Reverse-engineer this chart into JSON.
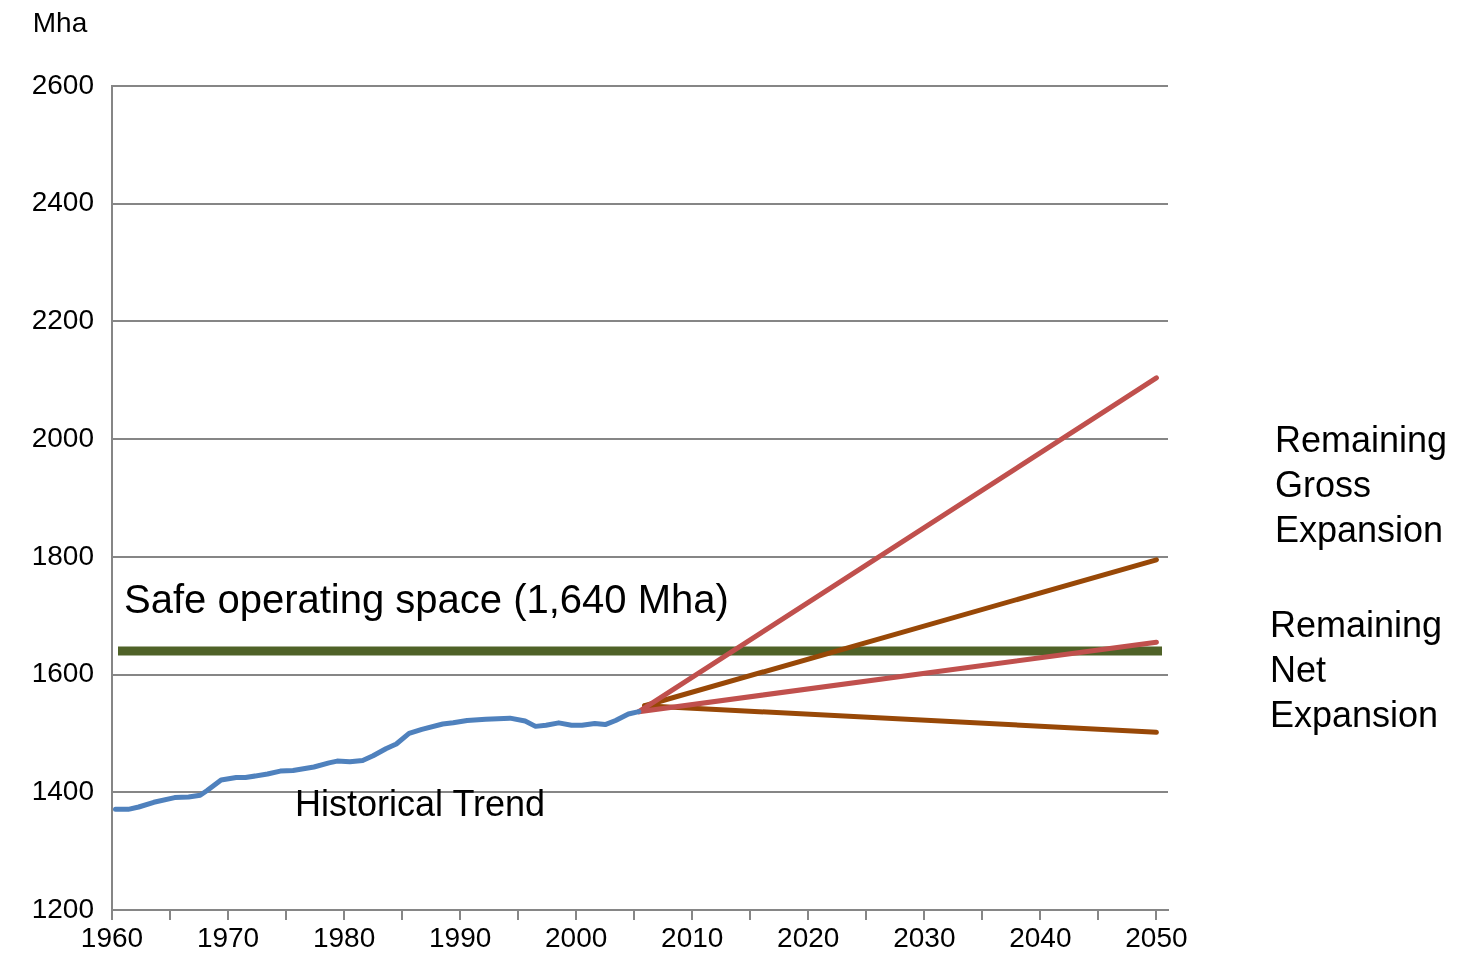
{
  "chart_data": {
    "type": "line",
    "ylabel": "Mha",
    "xlim": [
      1960,
      2051
    ],
    "ylim": [
      1200,
      2600
    ],
    "xticks": [
      1960,
      {
        "value": 1965,
        "label": null
      },
      1970,
      {
        "value": 1975,
        "label": null
      },
      1980,
      {
        "value": 1985,
        "label": null
      },
      1990,
      {
        "value": 1995,
        "label": null
      },
      2000,
      {
        "value": 2005,
        "label": null
      },
      2010,
      {
        "value": 2015,
        "label": null
      },
      2020,
      {
        "value": 2025,
        "label": null
      },
      2030,
      {
        "value": 2035,
        "label": null
      },
      2040,
      {
        "value": 2045,
        "label": null
      },
      2050
    ],
    "yticks": [
      1200,
      1400,
      1600,
      1800,
      2000,
      2200,
      2400,
      2600
    ],
    "grid": "y",
    "legend": false,
    "marker": "none",
    "line_style": "solid",
    "series": [
      {
        "color": "#4f81bd",
        "x": [
          1960.3,
          1961.4,
          1962.3,
          1963.6,
          1965.4,
          1966.6,
          1967.6,
          1968.2,
          1969.4,
          1970.7,
          1971.5,
          1973.4,
          1974.5,
          1975.6,
          1977.4,
          1978.7,
          1979.4,
          1980.5,
          1981.6,
          1982.5,
          1983.6,
          1984.5,
          1985.6,
          1986.7,
          1988.5,
          1989.4,
          1990.6,
          1992.2,
          1994.3,
          1995.6,
          1996.5,
          1997.4,
          1998.5,
          1999.6,
          2000.5,
          2001.6,
          2002.5,
          2003.4,
          2004.5,
          2005.4
        ],
        "values": [
          1371,
          1371,
          1375,
          1383,
          1391,
          1392,
          1395,
          1403,
          1421,
          1425,
          1425,
          1431,
          1436,
          1437,
          1443,
          1450,
          1453,
          1452,
          1454,
          1462,
          1474,
          1482,
          1500,
          1507,
          1516,
          1518,
          1522,
          1524,
          1526,
          1521,
          1512,
          1514,
          1518,
          1514,
          1514,
          1517,
          1515,
          1522,
          1533,
          1537
        ]
      },
      {
        "color": "#c0504d",
        "x": [
          2005.4,
          2050
        ],
        "values": [
          1537,
          2104
        ]
      },
      {
        "color": "#984807",
        "x": [
          2005.9,
          2050
        ],
        "values": [
          1547,
          1795
        ]
      },
      {
        "color": "#c0504d",
        "x": [
          2005.4,
          2050
        ],
        "values": [
          1537,
          1655
        ]
      },
      {
        "color": "#984807",
        "x": [
          2005.9,
          2050
        ],
        "values": [
          1547,
          1502
        ]
      }
    ],
    "ref_lines": [
      {
        "axis": "y",
        "value": 1640,
        "label": "Safe operating space (1,640 Mha)",
        "color": "#4f6228"
      }
    ],
    "annotations": [
      "Historical Trend",
      "Remaining Gross Expansion",
      "Remaining Net Expansion"
    ]
  }
}
